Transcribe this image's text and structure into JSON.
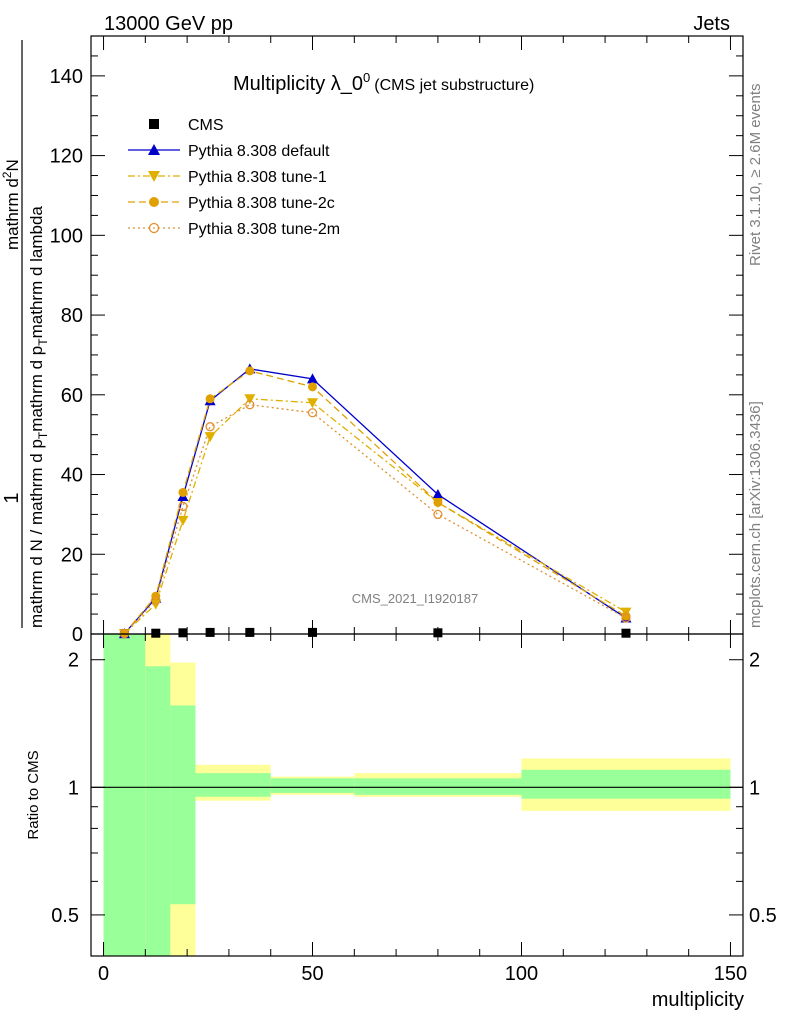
{
  "header": {
    "left": "13000 GeV pp",
    "right": "Jets"
  },
  "side_labels": {
    "rivet": "Rivet 3.1.10, ≥ 2.6M events",
    "mcplots": "mcplots.cern.ch [arXiv:1306.3436]"
  },
  "watermark": "CMS_2021_I1920187",
  "chart_data": [
    {
      "type": "line",
      "title": "Multiplicity λ_0",
      "title_sup": "0",
      "subtitle": "(CMS jet substructure)",
      "ylabel_num": "1",
      "ylabel_den": "mathrm d N / mathrm d p",
      "ylabel_den_sub": "T",
      "ylabel_expr": "mathrm d",
      "ylabel_expr_sup": "2",
      "ylabel_expr_rest": "N",
      "ylabel_expr_den": "mathrm d p",
      "ylabel_expr_den_sub": "T",
      "ylabel_expr_den_rest": "mathrm d lambda",
      "xlim": [
        -3,
        153
      ],
      "ylim": [
        0,
        150
      ],
      "yticks": [
        0,
        20,
        40,
        60,
        80,
        100,
        120,
        140
      ],
      "yticklabels": [
        "0",
        "20",
        "40",
        "60",
        "80",
        "100",
        "120",
        "140"
      ],
      "legend_position": "top-left",
      "series": [
        {
          "name": "CMS",
          "color": "#000000",
          "marker": "square",
          "x": [
            5,
            12.5,
            19,
            25.5,
            35,
            50,
            80,
            125
          ],
          "y": [
            0.1,
            0.2,
            0.3,
            0.4,
            0.4,
            0.4,
            0.3,
            0.2
          ]
        },
        {
          "name": "Pythia 8.308 default",
          "color": "#0000cc",
          "marker": "triangle-up",
          "dash": "solid",
          "x": [
            5,
            12.5,
            19,
            25.5,
            35,
            50,
            80,
            125
          ],
          "y": [
            0.1,
            9.0,
            34.5,
            58.5,
            66.5,
            64.0,
            35.0,
            4.0
          ]
        },
        {
          "name": "Pythia 8.308 tune-1",
          "color": "#e0b000",
          "marker": "triangle-down",
          "dash": "dashdot",
          "x": [
            5,
            12.5,
            19,
            25.5,
            35,
            50,
            80,
            125
          ],
          "y": [
            0.1,
            7.5,
            28.5,
            49.5,
            59.0,
            58.0,
            33.0,
            5.5
          ]
        },
        {
          "name": "Pythia 8.308 tune-2c",
          "color": "#e0a000",
          "marker": "circle",
          "dash": "dashed",
          "x": [
            5,
            12.5,
            19,
            25.5,
            35,
            50,
            80,
            125
          ],
          "y": [
            0.1,
            9.5,
            35.5,
            59.0,
            66.0,
            62.0,
            33.0,
            4.5
          ]
        },
        {
          "name": "Pythia 8.308 tune-2m",
          "color": "#e09030",
          "marker": "open-circle",
          "dash": "dotted",
          "x": [
            5,
            12.5,
            19,
            25.5,
            35,
            50,
            80,
            125
          ],
          "y": [
            0.1,
            8.5,
            32.0,
            52.0,
            57.5,
            55.5,
            30.0,
            4.0
          ]
        }
      ]
    },
    {
      "type": "area",
      "ylabel": "Ratio to CMS",
      "xlabel": "multiplicity",
      "xlim": [
        -3,
        153
      ],
      "ylim": [
        0.4,
        2.3
      ],
      "yscale": "log",
      "yticks": [
        0.5,
        1,
        2
      ],
      "yticklabels": [
        "0.5",
        "1",
        "2"
      ],
      "xticks": [
        0,
        50,
        100,
        150
      ],
      "xticklabels": [
        "0",
        "50",
        "100",
        "150"
      ],
      "reference_line": 1,
      "bins": [
        {
          "x0": 0,
          "x1": 10,
          "green": [
            0.4,
            2.3
          ],
          "yellow": [
            0.4,
            2.3
          ]
        },
        {
          "x0": 10,
          "x1": 16,
          "green": [
            0.4,
            1.93
          ],
          "yellow": [
            0.4,
            2.3
          ]
        },
        {
          "x0": 16,
          "x1": 22,
          "green": [
            0.53,
            1.56
          ],
          "yellow": [
            0.4,
            1.97
          ]
        },
        {
          "x0": 22,
          "x1": 40,
          "green": [
            0.95,
            1.08
          ],
          "yellow": [
            0.93,
            1.13
          ]
        },
        {
          "x0": 40,
          "x1": 60,
          "green": [
            0.97,
            1.05
          ],
          "yellow": [
            0.96,
            1.06
          ]
        },
        {
          "x0": 60,
          "x1": 100,
          "green": [
            0.96,
            1.05
          ],
          "yellow": [
            0.95,
            1.08
          ]
        },
        {
          "x0": 100,
          "x1": 150,
          "green": [
            0.94,
            1.1
          ],
          "yellow": [
            0.88,
            1.17
          ]
        }
      ],
      "band_colors": {
        "green": "#99ff99",
        "yellow": "#ffff99"
      }
    }
  ]
}
